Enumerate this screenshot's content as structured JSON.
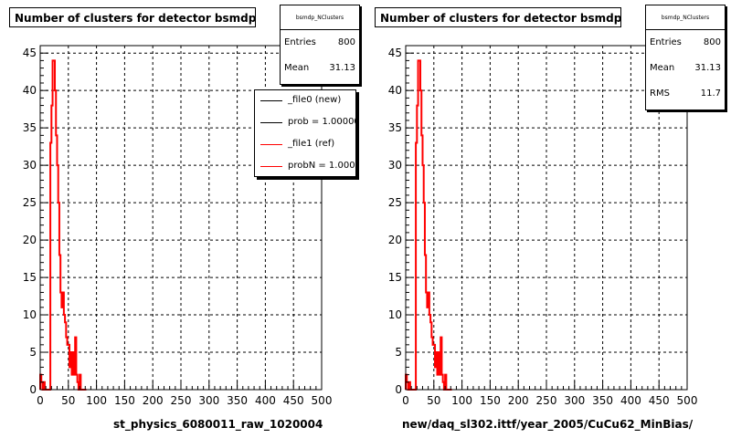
{
  "colors": {
    "ref": "#ff0000",
    "new": "#000000",
    "frame": "#000000",
    "grid": "#000000"
  },
  "chart_data": [
    {
      "type": "bar",
      "title": "Number of clusters for detector bsmdp",
      "xlabel": "st_physics_6080011_raw_1020004",
      "ylabel": "",
      "xlim": [
        0,
        500
      ],
      "ylim": [
        0,
        46
      ],
      "x_ticks": [
        0,
        50,
        100,
        150,
        200,
        250,
        300,
        350,
        400,
        450,
        500
      ],
      "y_ticks": [
        0,
        5,
        10,
        15,
        20,
        25,
        30,
        35,
        40,
        45
      ],
      "grid": true,
      "legend_position": "top-right",
      "stats": {
        "name": "bsmdp_NClusters",
        "rows": [
          {
            "k": "Entries",
            "v": "800"
          },
          {
            "k": "Mean",
            "v": "31.13"
          }
        ]
      },
      "legend": [
        {
          "label": "_file0 (new)",
          "color": "#000000"
        },
        {
          "label": "prob = 1.000000",
          "color": "#000000"
        },
        {
          "label": "_file1 (ref)",
          "color": "#ff0000"
        },
        {
          "label": "probN = 1.000000",
          "color": "#ff0000"
        }
      ],
      "series": [
        {
          "name": "_file1 (ref)",
          "bin_width": 2,
          "x": [
            0,
            2,
            4,
            6,
            8,
            10,
            12,
            14,
            16,
            18,
            20,
            22,
            24,
            26,
            28,
            30,
            32,
            34,
            36,
            38,
            40,
            42,
            44,
            46,
            48,
            50,
            52,
            54,
            56,
            58,
            60,
            62,
            64,
            66,
            68,
            70,
            72,
            74,
            76,
            78,
            80
          ],
          "values": [
            2,
            1,
            0,
            1,
            0,
            0,
            0,
            0,
            0,
            33,
            38,
            44,
            44,
            40,
            34,
            30,
            25,
            18,
            13,
            11,
            13,
            10,
            9,
            7,
            6,
            6,
            3,
            5,
            2,
            5,
            2,
            7,
            2,
            1,
            0,
            2,
            0,
            0,
            0,
            0,
            0
          ]
        }
      ]
    },
    {
      "type": "bar",
      "title": "Number of clusters for detector bsmdp",
      "xlabel": "new/daq_sl302.ittf/year_2005/CuCu62_MinBias/",
      "ylabel": "",
      "xlim": [
        0,
        500
      ],
      "ylim": [
        0,
        46
      ],
      "x_ticks": [
        0,
        50,
        100,
        150,
        200,
        250,
        300,
        350,
        400,
        450,
        500
      ],
      "y_ticks": [
        0,
        5,
        10,
        15,
        20,
        25,
        30,
        35,
        40,
        45
      ],
      "grid": true,
      "stats": {
        "name": "bsmdp_NClusters",
        "rows": [
          {
            "k": "Entries",
            "v": "800"
          },
          {
            "k": "Mean",
            "v": "31.13"
          },
          {
            "k": "RMS",
            "v": "11.7"
          }
        ]
      },
      "series": [
        {
          "name": "",
          "bin_width": 2,
          "x": [
            0,
            2,
            4,
            6,
            8,
            10,
            12,
            14,
            16,
            18,
            20,
            22,
            24,
            26,
            28,
            30,
            32,
            34,
            36,
            38,
            40,
            42,
            44,
            46,
            48,
            50,
            52,
            54,
            56,
            58,
            60,
            62,
            64,
            66,
            68,
            70,
            72,
            74,
            76,
            78,
            80
          ],
          "values": [
            2,
            1,
            0,
            1,
            0,
            0,
            0,
            0,
            0,
            33,
            38,
            44,
            44,
            40,
            34,
            30,
            25,
            18,
            13,
            11,
            13,
            10,
            9,
            7,
            6,
            6,
            3,
            5,
            2,
            5,
            2,
            7,
            2,
            1,
            0,
            2,
            0,
            0,
            0,
            0,
            0
          ]
        }
      ]
    }
  ]
}
